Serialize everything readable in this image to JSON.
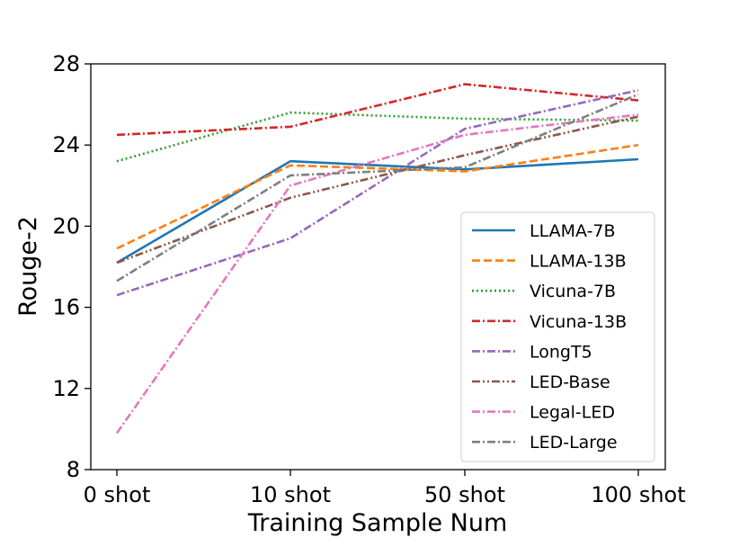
{
  "chart_data": {
    "type": "line",
    "title": "",
    "xlabel": "Training Sample Num",
    "ylabel": "Rouge-2",
    "categories": [
      "0 shot",
      "10 shot",
      "50 shot",
      "100 shot"
    ],
    "ylim": [
      8,
      28
    ],
    "yticks": [
      8,
      12,
      16,
      20,
      24,
      28
    ],
    "grid": false,
    "legend_position": "lower-right",
    "series": [
      {
        "name": "LLAMA-7B",
        "values": [
          18.2,
          23.2,
          22.8,
          23.3
        ],
        "color": "#1f77b4",
        "dash": "solid"
      },
      {
        "name": "LLAMA-13B",
        "values": [
          18.9,
          23.0,
          22.7,
          24.0
        ],
        "color": "#ff7f0e",
        "dash": "dashed"
      },
      {
        "name": "Vicuna-7B",
        "values": [
          23.2,
          25.6,
          25.3,
          25.2
        ],
        "color": "#2ca02c",
        "dash": "dotted"
      },
      {
        "name": "Vicuna-13B",
        "values": [
          24.5,
          24.9,
          27.0,
          26.2
        ],
        "color": "#d62728",
        "dash": "dashdot"
      },
      {
        "name": "LongT5",
        "values": [
          16.6,
          19.4,
          24.8,
          26.7
        ],
        "color": "#9467bd",
        "dash": "dashdot"
      },
      {
        "name": "LED-Base",
        "values": [
          18.2,
          21.4,
          23.5,
          25.4
        ],
        "color": "#8c564b",
        "dash": "dashdotdot"
      },
      {
        "name": "Legal-LED",
        "values": [
          9.8,
          22.0,
          24.5,
          25.5
        ],
        "color": "#e377c2",
        "dash": "dashdot"
      },
      {
        "name": "LED-Large",
        "values": [
          17.3,
          22.5,
          22.9,
          26.5
        ],
        "color": "#7f7f7f",
        "dash": "dashdot"
      }
    ]
  }
}
